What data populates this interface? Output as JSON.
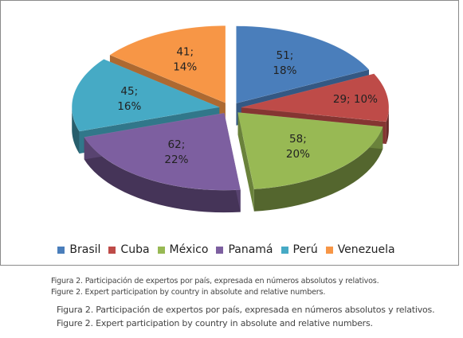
{
  "chart_data": {
    "type": "pie",
    "categories": [
      "Brasil",
      "Cuba",
      "México",
      "Panamá",
      "Perú",
      "Venezuela"
    ],
    "values": [
      51,
      29,
      58,
      62,
      45,
      41
    ],
    "percentages": [
      "18%",
      "10%",
      "20%",
      "22%",
      "16%",
      "14%"
    ],
    "data_labels": [
      "51;\n18%",
      "29; 10%",
      "58;\n20%",
      "62;\n22%",
      "45;\n16%",
      "41;\n14%"
    ],
    "colors": [
      "#4a7ebb",
      "#be4b48",
      "#98b954",
      "#7d5fa0",
      "#46aac5",
      "#f79646"
    ],
    "legend_position": "bottom",
    "style": "3d-exploded-pie"
  },
  "captions": {
    "small": {
      "line1": "Figura 2. Participación de expertos por país, expresada en números absolutos y relativos.",
      "line2": "Figure 2. Expert participation by country in absolute and relative numbers."
    },
    "large": {
      "line1": "Figura 2. Participación de expertos por país, expresada en números absolutos y relativos.",
      "line2": "Figure 2. Expert participation by country in absolute and relative numbers."
    }
  }
}
